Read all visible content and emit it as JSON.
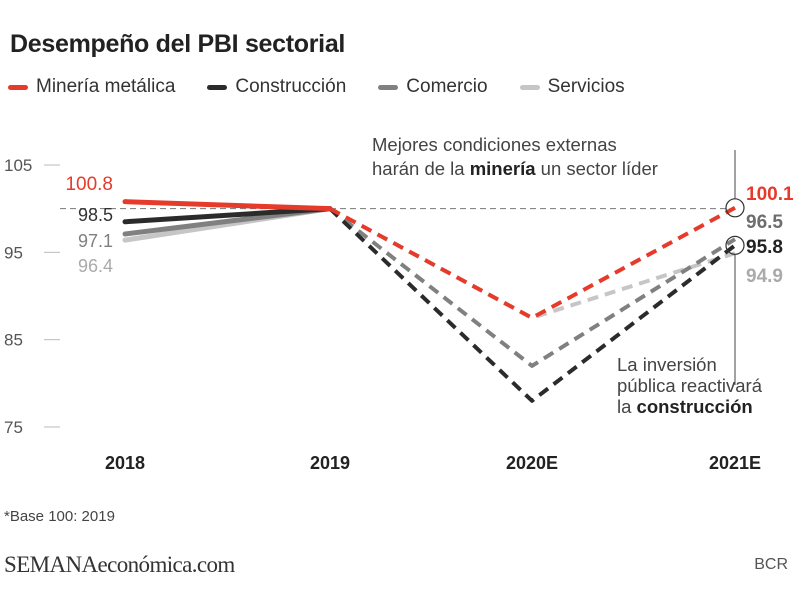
{
  "header": {
    "title": "Desempeño del PBI sectorial"
  },
  "legend": [
    {
      "label": "Minería metálica",
      "color": "#e63a2b"
    },
    {
      "label": "Construcción",
      "color": "#2b2b2b"
    },
    {
      "label": "Comercio",
      "color": "#808080"
    },
    {
      "label": "Servicios",
      "color": "#c6c6c6"
    }
  ],
  "chart_data": {
    "type": "line",
    "title": "Desempeño del PBI sectorial",
    "categories": [
      "2018",
      "2019",
      "2020E",
      "2021E"
    ],
    "ylim": [
      75,
      105
    ],
    "yticks": [
      105,
      95,
      85,
      75
    ],
    "reference_line": 100,
    "series": [
      {
        "name": "Minería metálica",
        "color": "#e63a2b",
        "values": [
          100.8,
          100,
          87.5,
          100.1
        ],
        "labels": {
          "first": "100.8",
          "last": "100.1"
        }
      },
      {
        "name": "Construcción",
        "color": "#2b2b2b",
        "values": [
          98.5,
          100,
          78,
          95.8
        ],
        "labels": {
          "first": "98.5",
          "last": "95.8"
        }
      },
      {
        "name": "Comercio",
        "color": "#808080",
        "values": [
          97.1,
          100,
          82,
          96.5
        ],
        "labels": {
          "first": "97.1",
          "last": "96.5"
        }
      },
      {
        "name": "Servicios",
        "color": "#c6c6c6",
        "values": [
          96.4,
          100,
          87.5,
          94.9
        ],
        "labels": {
          "first": "96.4",
          "last": "94.9"
        }
      }
    ],
    "annotations": [
      {
        "lines": [
          [
            "Mejores condiciones externas"
          ],
          [
            "harán de la ",
            "minería",
            " un sector líder"
          ]
        ]
      },
      {
        "lines": [
          [
            "La inversión"
          ],
          [
            "pública reactivará"
          ],
          [
            "la ",
            "construcción"
          ]
        ]
      }
    ]
  },
  "footer": {
    "note": "*Base 100: 2019",
    "brand_bold": "SEMANA",
    "brand_rest": "económica.com",
    "source": "BCR"
  }
}
